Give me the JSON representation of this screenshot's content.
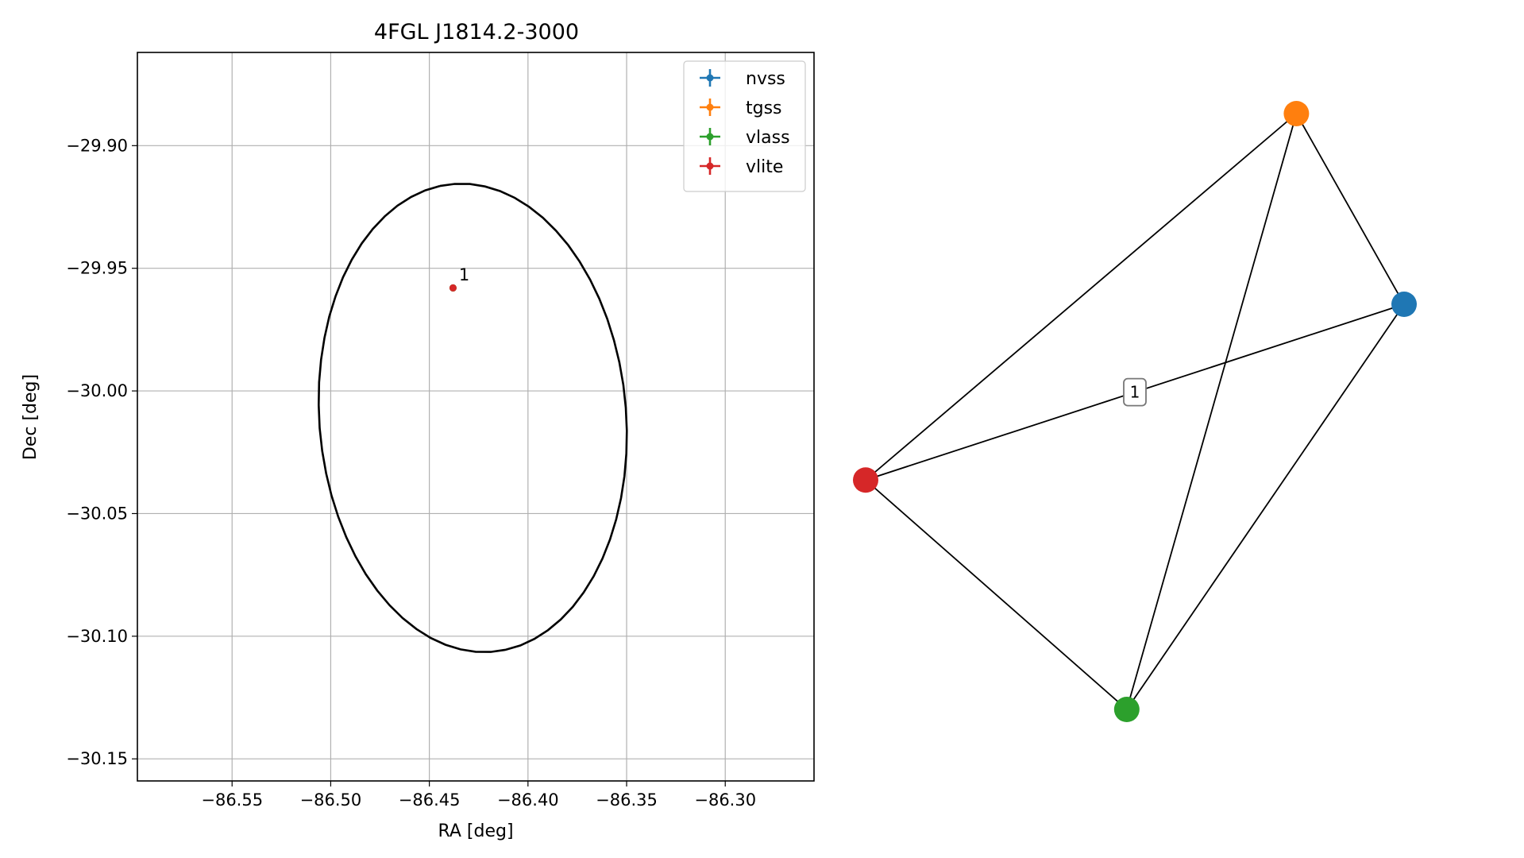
{
  "chart_data": [
    {
      "type": "scatter",
      "title": "4FGL J1814.2-3000",
      "xlabel": "RA [deg]",
      "ylabel": "Dec [deg]",
      "xlim": [
        -86.598,
        -86.255
      ],
      "ylim": [
        -30.159,
        -29.862
      ],
      "xticks": [
        {
          "value": -86.55,
          "label": "−86.55"
        },
        {
          "value": -86.5,
          "label": "−86.50"
        },
        {
          "value": -86.45,
          "label": "−86.45"
        },
        {
          "value": -86.4,
          "label": "−86.40"
        },
        {
          "value": -86.35,
          "label": "−86.35"
        },
        {
          "value": -86.3,
          "label": "−86.30"
        }
      ],
      "yticks": [
        {
          "value": -29.9,
          "label": "−29.90"
        },
        {
          "value": -29.95,
          "label": "−29.95"
        },
        {
          "value": -30.0,
          "label": "−30.00"
        },
        {
          "value": -30.05,
          "label": "−30.05"
        },
        {
          "value": -30.1,
          "label": "−30.10"
        },
        {
          "value": -30.15,
          "label": "−30.15"
        }
      ],
      "grid": true,
      "legend_position": "top-right",
      "series": [
        {
          "name": "nvss",
          "color": "#1f77b4",
          "points": [
            {
              "x": -86.438,
              "y": -29.958
            }
          ]
        },
        {
          "name": "tgss",
          "color": "#ff7f0e",
          "points": [
            {
              "x": -86.438,
              "y": -29.958
            }
          ]
        },
        {
          "name": "vlass",
          "color": "#2ca02c",
          "points": [
            {
              "x": -86.438,
              "y": -29.958
            }
          ]
        },
        {
          "name": "vlite",
          "color": "#d62728",
          "points": [
            {
              "x": -86.438,
              "y": -29.958
            }
          ]
        }
      ],
      "annotations": [
        {
          "text": "1",
          "x": -86.435,
          "y": -29.955
        }
      ],
      "ellipse": {
        "center": {
          "x": -86.428,
          "y": -30.011
        },
        "semi_major": 0.096,
        "semi_minor": 0.0775,
        "angle_deg": 100,
        "color": "#000000"
      }
    },
    {
      "type": "network",
      "nodes": [
        {
          "id": "nvss",
          "color": "#1f77b4",
          "pos": [
            1.0,
            0.68
          ]
        },
        {
          "id": "tgss",
          "color": "#ff7f0e",
          "pos": [
            0.8,
            1.0
          ]
        },
        {
          "id": "vlass",
          "color": "#2ca02c",
          "pos": [
            0.485,
            0.0
          ]
        },
        {
          "id": "vlite",
          "color": "#d62728",
          "pos": [
            0.0,
            0.385
          ]
        }
      ],
      "edges": [
        {
          "source": "nvss",
          "target": "tgss"
        },
        {
          "source": "nvss",
          "target": "vlass"
        },
        {
          "source": "nvss",
          "target": "vlite"
        },
        {
          "source": "tgss",
          "target": "vlass"
        },
        {
          "source": "tgss",
          "target": "vlite"
        },
        {
          "source": "vlass",
          "target": "vlite"
        }
      ],
      "edge_labels": [
        {
          "text": "1",
          "between": [
            "nvss",
            "vlite"
          ]
        }
      ]
    }
  ]
}
